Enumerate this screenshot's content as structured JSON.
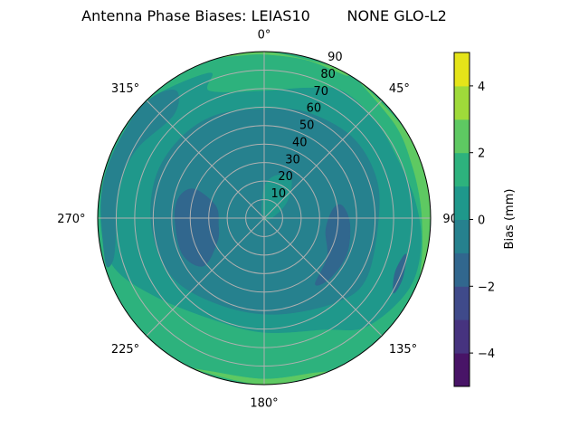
{
  "chart_data": {
    "type": "polar-contour",
    "title": "Antenna Phase Biases: LEIAS10        NONE GLO-L2",
    "angular_axis": {
      "zero_location": "top",
      "direction": "clockwise",
      "tick_labels": [
        "0°",
        "45°",
        "90°",
        "135°",
        "180°",
        "225°",
        "270°",
        "315°"
      ],
      "tick_values": [
        0,
        45,
        90,
        135,
        180,
        225,
        270,
        315
      ]
    },
    "radial_axis": {
      "range": [
        0,
        90
      ],
      "tick_values": [
        10,
        20,
        30,
        40,
        50,
        60,
        70,
        80,
        90
      ],
      "tick_labels": [
        "10",
        "20",
        "30",
        "40",
        "50",
        "60",
        "70",
        "80",
        "90"
      ]
    },
    "grid": true,
    "colorbar": {
      "label": "Bias (mm)",
      "colormap": "viridis",
      "levels": [
        -5,
        -4,
        -3,
        -2,
        -1,
        0,
        1,
        2,
        3,
        4,
        5
      ],
      "tick_values": [
        -4,
        -2,
        0,
        2,
        4
      ],
      "tick_labels": [
        "−4",
        "−2",
        "0",
        "2",
        "4"
      ],
      "band_colors": [
        "#481467",
        "#46337f",
        "#3f4a8a",
        "#31678e",
        "#26818e",
        "#1f988b",
        "#2db27d",
        "#5ec962",
        "#9fda3a",
        "#e5e419"
      ]
    },
    "regions_note_units": "points are [azimuth_deg, radial_value]",
    "regions": [
      {
        "level": [
          1,
          2
        ],
        "points": "full-disk"
      },
      {
        "level": [
          2,
          3
        ],
        "points": [
          [
            35,
            90
          ],
          [
            60,
            90
          ],
          [
            80,
            90
          ],
          [
            100,
            90
          ],
          [
            110,
            90
          ],
          [
            100,
            87
          ],
          [
            85,
            85
          ],
          [
            70,
            85
          ],
          [
            55,
            87
          ]
        ]
      },
      {
        "level": [
          2,
          3
        ],
        "points": [
          [
            158,
            90
          ],
          [
            180,
            90
          ],
          [
            205,
            90
          ],
          [
            200,
            88
          ],
          [
            180,
            87
          ],
          [
            162,
            88
          ]
        ]
      },
      {
        "level": [
          2,
          3
        ],
        "points": [
          [
            345,
            90
          ],
          [
            0,
            90
          ],
          [
            25,
            90
          ],
          [
            30,
            89
          ],
          [
            15,
            88.5
          ],
          [
            0,
            88.5
          ],
          [
            350,
            89
          ]
        ]
      },
      {
        "level": [
          0,
          1
        ],
        "points": [
          [
            0,
            68.7
          ],
          [
            17.9,
            73.9
          ],
          [
            31.6,
            80.6
          ],
          [
            49,
            79.8
          ],
          [
            65.4,
            78.8
          ],
          [
            83,
            82
          ],
          [
            99.7,
            86
          ],
          [
            116.5,
            87
          ],
          [
            136.6,
            80.6
          ],
          [
            151.7,
            68.4
          ],
          [
            180,
            61.8
          ],
          [
            205.4,
            61.2
          ],
          [
            234.3,
            72.5
          ],
          [
            252.4,
            85.7
          ],
          [
            270,
            88.5
          ],
          [
            286.6,
            89
          ],
          [
            301.8,
            89
          ],
          [
            317,
            89
          ],
          [
            339.4,
            83.8
          ],
          [
            336.7,
            74.8
          ]
        ]
      },
      {
        "level": [
          -1,
          0
        ],
        "points": [
          [
            0,
            58.9
          ],
          [
            21.6,
            61.6
          ],
          [
            46.8,
            64.6
          ],
          [
            69,
            64.4
          ],
          [
            90,
            61.8
          ],
          [
            120.4,
            64.1
          ],
          [
            139.4,
            59.9
          ],
          [
            173,
            52.4
          ],
          [
            206,
            52.5
          ],
          [
            236.5,
            58.9
          ],
          [
            264,
            60.9
          ],
          [
            290,
            62.6
          ],
          [
            312.9,
            62.6
          ],
          [
            334.7,
            61.5
          ]
        ]
      },
      {
        "level": [
          -1,
          0
        ],
        "points": [
          [
            317,
            89
          ],
          [
            325.4,
            83.5
          ],
          [
            318.6,
            74.2
          ],
          [
            298.7,
            78.3
          ],
          [
            283,
            80.5
          ],
          [
            265.5,
            80.3
          ],
          [
            254.5,
            84.8
          ],
          [
            255,
            89
          ],
          [
            281,
            89
          ],
          [
            303,
            89
          ]
        ]
      },
      {
        "level": [
          -2,
          -1
        ],
        "points": [
          [
            292.6,
            40.8
          ],
          [
            284.3,
            27.1
          ],
          [
            262,
            25
          ],
          [
            243.1,
            28.5
          ],
          [
            231.7,
            41.8
          ],
          [
            246.3,
            48.3
          ],
          [
            270,
            48.3
          ],
          [
            284.2,
            47.3
          ]
        ]
      },
      {
        "level": [
          -2,
          -1
        ],
        "points": [
          [
            81,
            42.8
          ],
          [
            93.8,
            46.4
          ],
          [
            113.5,
            48.7
          ],
          [
            132.3,
            48.3
          ],
          [
            142.3,
            45.1
          ],
          [
            121.7,
            40.1
          ],
          [
            100.8,
            33.9
          ],
          [
            82.3,
            37.7
          ]
        ]
      },
      {
        "level": [
          -2,
          -1
        ],
        "points": [
          [
            104.2,
            79
          ],
          [
            113.4,
            81.6
          ],
          [
            120.1,
            80.9
          ],
          [
            112.4,
            76.6
          ]
        ]
      },
      {
        "level": [
          0,
          1
        ],
        "points": [
          [
            225,
            1
          ],
          [
            0,
            16.5
          ],
          [
            15.5,
            23.9
          ],
          [
            34.2,
            25.8
          ],
          [
            52.3,
            16.3
          ],
          [
            74,
            6.6
          ]
        ]
      }
    ]
  }
}
